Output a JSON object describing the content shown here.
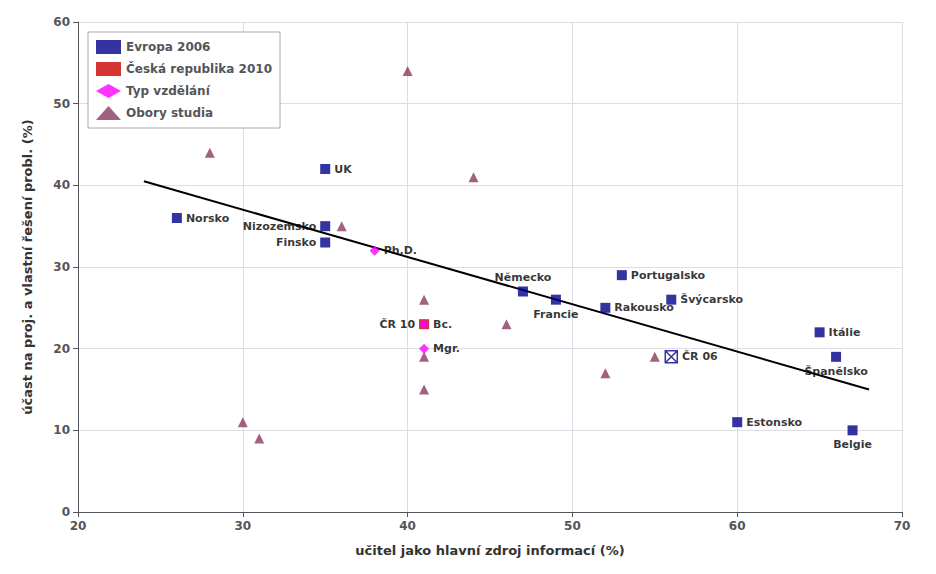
{
  "chart_data": {
    "type": "scatter",
    "xlabel": "učitel jako hlavní zdroj informací (%)",
    "ylabel": "účast na proj. a vlastní řešení probl. (%)",
    "xlim": [
      20,
      70
    ],
    "ylim": [
      0,
      60
    ],
    "xticks": [
      20,
      30,
      40,
      50,
      60,
      70
    ],
    "yticks": [
      0,
      10,
      20,
      30,
      40,
      50,
      60
    ],
    "grid": true,
    "legend": "upper left",
    "series": [
      {
        "name": "Evropa 2006",
        "type": "scatter",
        "color": "#00008B",
        "marker": "square",
        "x": [
          26,
          35,
          35,
          35,
          47,
          49,
          52,
          53,
          56,
          60,
          65,
          66,
          67
        ],
        "values": [
          36,
          35,
          42,
          33,
          27,
          26,
          25,
          29,
          26,
          11,
          22,
          19,
          10
        ],
        "labels": [
          "Norsko",
          "Nizozemsko",
          "UK",
          "Finsko",
          "Německo",
          "Francie",
          "Rakousko",
          "Portugalsko",
          "Švýcarsko",
          "Estonsko",
          "Itálie",
          "Španělsko",
          "Belgie"
        ]
      },
      {
        "name": "Česká republika 2010",
        "type": "scatter",
        "color": "#CC0000",
        "marker": "square",
        "x": [
          41
        ],
        "values": [
          23
        ],
        "labels": [
          "ČR 10"
        ]
      },
      {
        "name": "Typ vzdělání",
        "type": "scatter",
        "color": "#FF00FF",
        "marker": "diamond",
        "x": [
          38,
          41,
          41
        ],
        "values": [
          32,
          23,
          20
        ],
        "labels": [
          "Ph.D.",
          "Bc.",
          "Mgr."
        ]
      },
      {
        "name": "Obory studia",
        "type": "scatter",
        "color": "#8B3A62",
        "marker": "triangle",
        "x": [
          28,
          30,
          31,
          36,
          40,
          41,
          41,
          41,
          44,
          46,
          52,
          55
        ],
        "values": [
          44,
          11,
          9,
          35,
          54,
          26,
          19,
          15,
          41,
          23,
          17,
          19
        ]
      },
      {
        "type": "scatter",
        "color": "#00008B",
        "marker": "square_x",
        "x": [
          56
        ],
        "values": [
          19
        ],
        "labels": [
          "ČR 06"
        ]
      },
      {
        "type": "line",
        "color": "black",
        "line_style": "solid",
        "x": [
          24,
          68
        ],
        "values": [
          40.5,
          15.0
        ]
      }
    ]
  }
}
